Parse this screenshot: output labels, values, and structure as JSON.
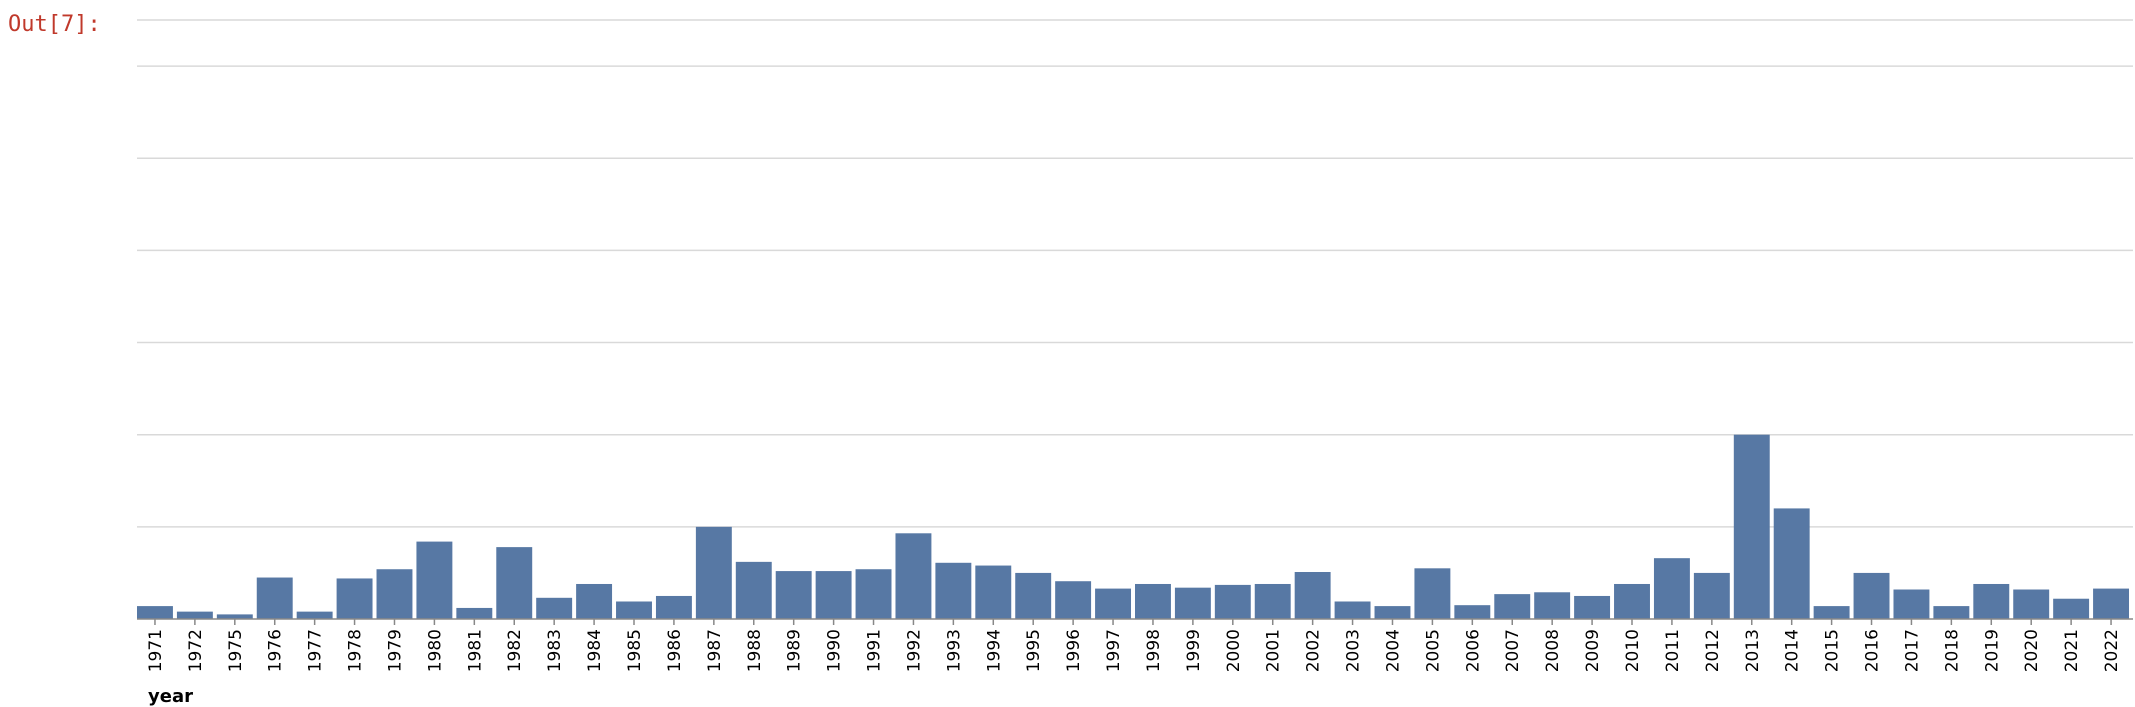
{
  "cell": {
    "prompt": "Out[7]:"
  },
  "chart_data": {
    "type": "bar",
    "xlabel": "year",
    "ylabel": "",
    "ylim": [
      0,
      65
    ],
    "grid": true,
    "colors": {
      "bar": "#5778a4"
    },
    "categories": [
      "1971",
      "1972",
      "1975",
      "1976",
      "1977",
      "1978",
      "1979",
      "1980",
      "1981",
      "1982",
      "1983",
      "1984",
      "1985",
      "1986",
      "1987",
      "1988",
      "1989",
      "1990",
      "1991",
      "1992",
      "1993",
      "1994",
      "1995",
      "1996",
      "1997",
      "1998",
      "1999",
      "2000",
      "2001",
      "2002",
      "2003",
      "2004",
      "2005",
      "2006",
      "2007",
      "2008",
      "2009",
      "2010",
      "2011",
      "2012",
      "2013",
      "2014",
      "2015",
      "2016",
      "2017",
      "2018",
      "2019",
      "2020",
      "2021",
      "2022"
    ],
    "values": [
      1.4,
      0.8,
      0.5,
      4.5,
      0.8,
      4.4,
      5.4,
      8.4,
      1.2,
      7.8,
      2.3,
      3.8,
      1.9,
      2.5,
      10.0,
      6.2,
      5.2,
      5.2,
      5.4,
      9.3,
      6.1,
      5.8,
      5.0,
      4.1,
      3.3,
      3.8,
      3.4,
      3.7,
      3.8,
      5.1,
      1.9,
      1.4,
      5.5,
      1.5,
      2.7,
      2.9,
      2.5,
      3.8,
      6.6,
      5.0,
      20.0,
      12.0,
      1.4,
      5.0,
      3.2,
      1.4,
      3.8,
      3.2,
      2.2,
      3.3
    ]
  }
}
